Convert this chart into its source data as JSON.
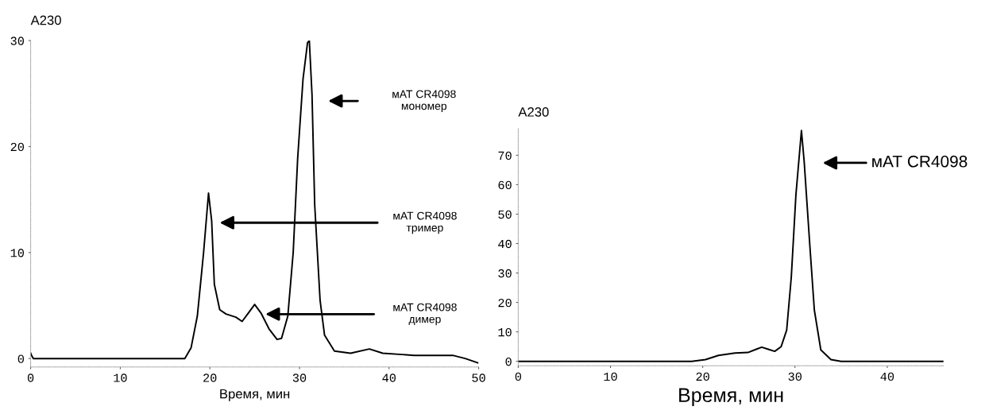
{
  "chart_data": [
    {
      "type": "line",
      "xlabel": "Время, мин",
      "ylabel": "A230",
      "x": [
        0,
        0.1,
        0.3,
        17.2,
        17.9,
        18.6,
        19.3,
        19.85,
        20.2,
        20.5,
        21.1,
        21.8,
        22.9,
        23.6,
        24.3,
        25.0,
        25.7,
        26.6,
        27.5,
        28.0,
        28.7,
        29.3,
        29.8,
        30.4,
        30.9,
        31.1,
        31.4,
        31.7,
        32.3,
        32.8,
        33.9,
        35.7,
        37.8,
        39.3,
        42.8,
        47.1,
        48.5,
        49.9
      ],
      "series": [
        {
          "color": "#000000",
          "values": [
            0.5,
            0.3,
            0,
            0,
            1.0,
            4.0,
            10,
            15.6,
            13,
            7,
            4.6,
            4.2,
            3.9,
            3.5,
            4.3,
            5.1,
            4.3,
            2.8,
            1.8,
            1.9,
            4.0,
            10,
            18.9,
            26.4,
            29.8,
            30,
            24.9,
            14.5,
            5.5,
            2.2,
            0.7,
            0.5,
            0.9,
            0.5,
            0.3,
            0.3,
            0,
            -0.4
          ]
        }
      ],
      "xlim": [
        0,
        50
      ],
      "xticks": [
        0,
        10,
        20,
        30,
        40,
        50
      ],
      "ylim": [
        -0.8,
        30
      ],
      "yticks": [
        0,
        10,
        20,
        30
      ],
      "grid": false,
      "legend": false,
      "marker": "none",
      "line_style": "solid",
      "annotations": [
        "мАТ CR4098\nмономер",
        "мАТ CR4098\nтример",
        "мАТ CR4098\nдимер"
      ]
    },
    {
      "type": "line",
      "xlabel": "Время, мин",
      "ylabel": "A230",
      "x": [
        0,
        18.8,
        20.3,
        21.7,
        23.5,
        24.9,
        25.8,
        26.4,
        27.1,
        27.8,
        28.5,
        29.1,
        29.6,
        30.1,
        30.7,
        31.0,
        31.6,
        32.1,
        32.8,
        33.9,
        35,
        46.1
      ],
      "series": [
        {
          "color": "#000000",
          "values": [
            0,
            0,
            0.6,
            2.0,
            2.8,
            3.0,
            4.1,
            4.8,
            4.1,
            3.4,
            5.0,
            10.6,
            28.6,
            56.5,
            78.4,
            67.7,
            39.8,
            17.4,
            3.9,
            0.6,
            0,
            0
          ]
        }
      ],
      "xlim": [
        0,
        46.1
      ],
      "xticks": [
        0,
        10,
        20,
        30,
        40
      ],
      "ylim": [
        -1.5,
        79
      ],
      "yticks": [
        0,
        10,
        20,
        30,
        40,
        50,
        60,
        70
      ],
      "grid": false,
      "legend": false,
      "marker": "none",
      "line_style": "solid",
      "annotations": [
        "мАТ CR4098"
      ]
    }
  ]
}
